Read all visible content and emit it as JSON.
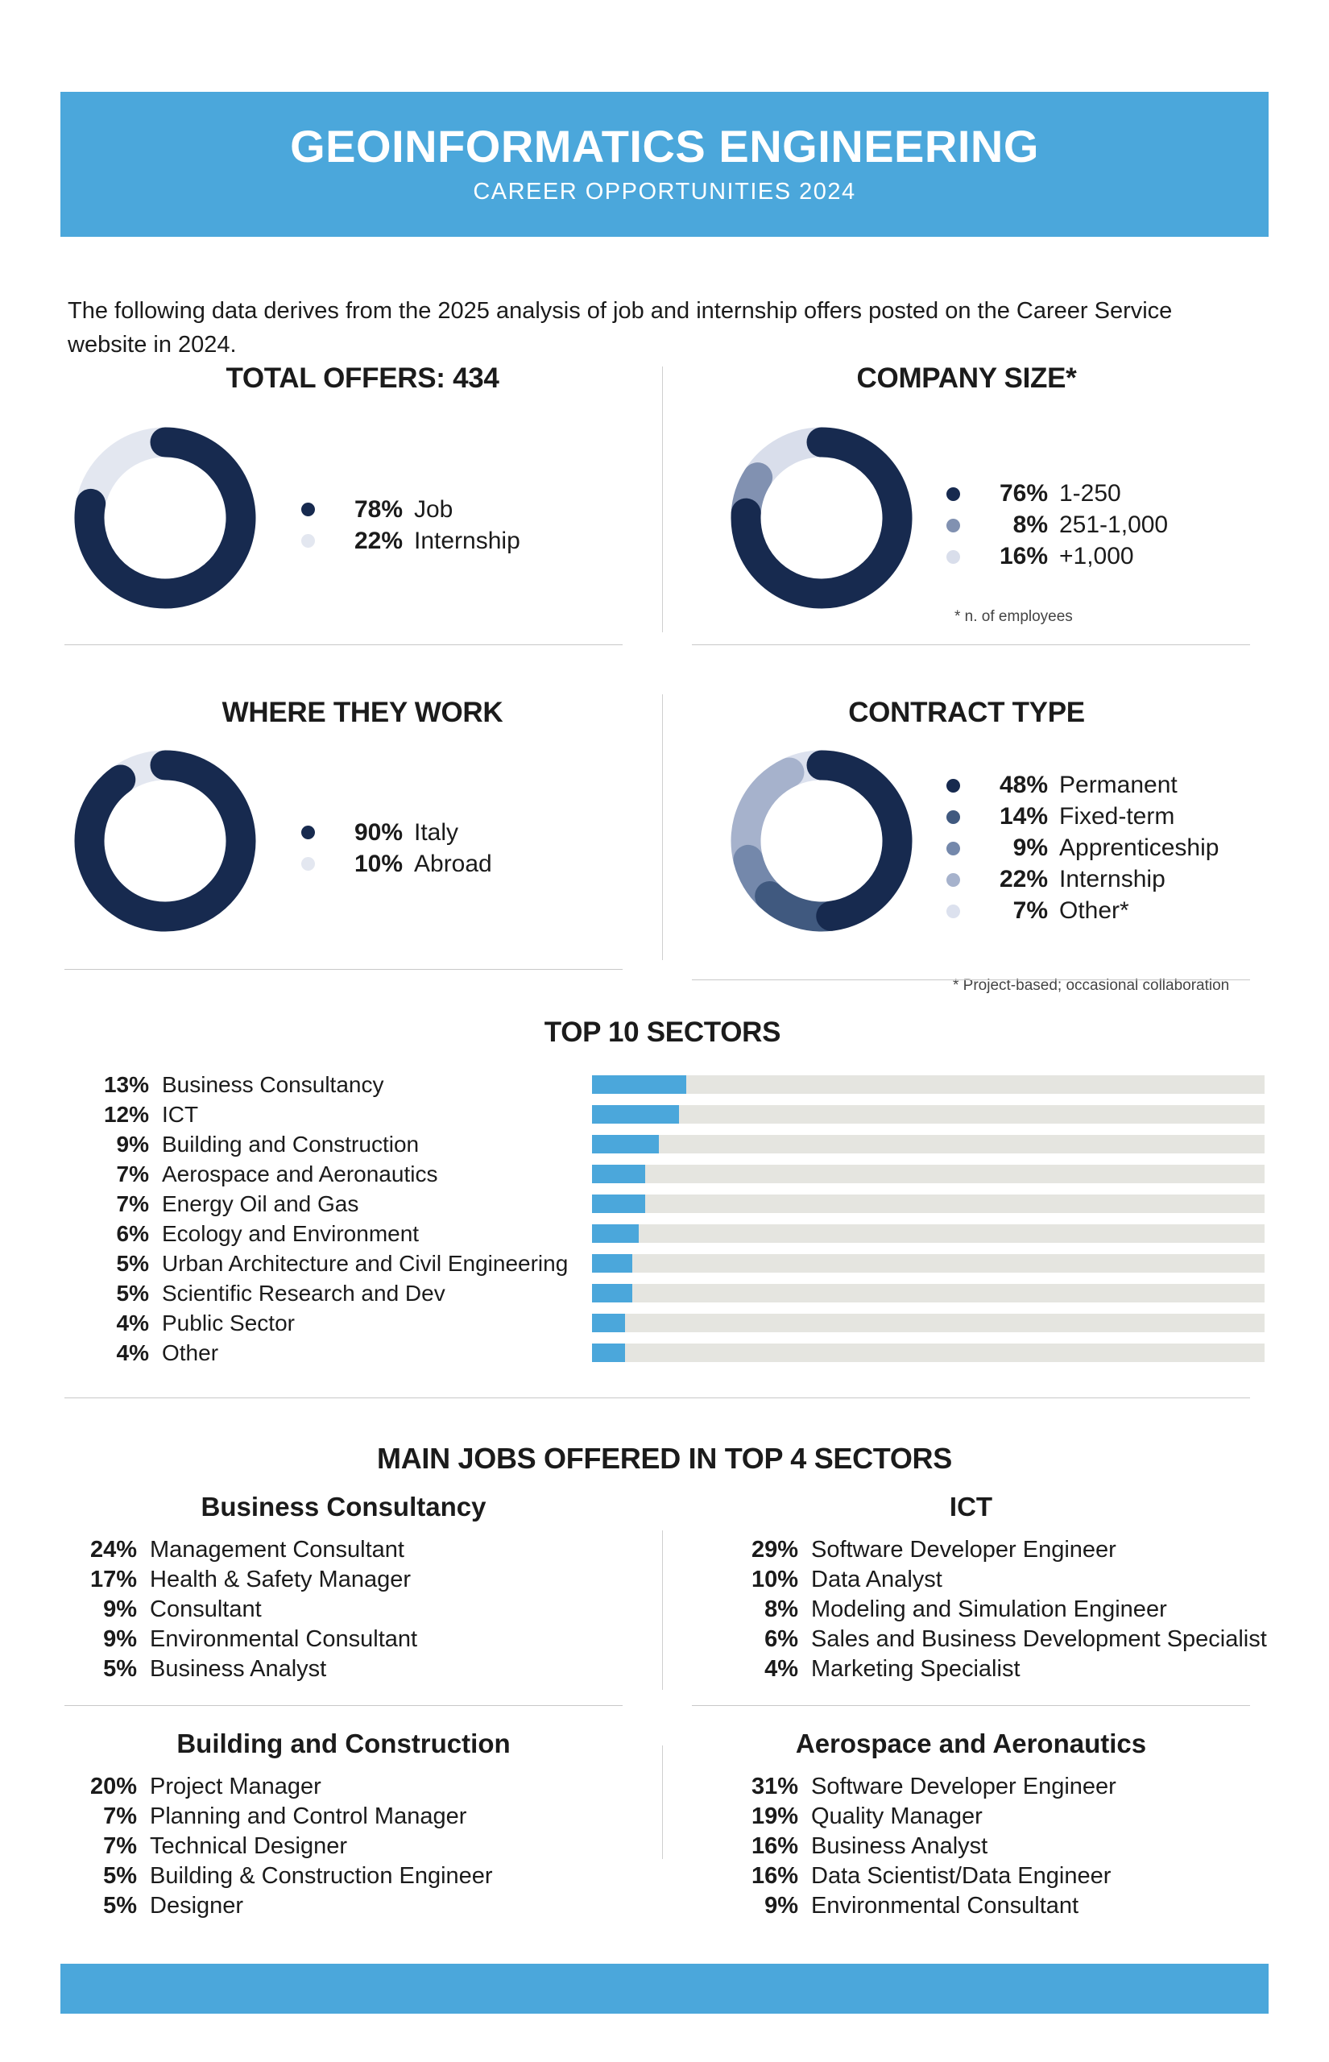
{
  "page": {
    "header": {
      "title": "GEOINFORMATICS ENGINEERING",
      "subtitle": "CAREER OPPORTUNITIES 2024"
    },
    "intro": "The following data derives from the 2025 analysis of job and internship offers posted on the Career Service website in 2024.",
    "colors": {
      "accent_blue": "#4BA7DB",
      "navy": "#172A4F",
      "bar_track": "#E5E5E0",
      "divider": "#C8C8C8"
    }
  },
  "chart_data": [
    {
      "type": "pie",
      "title": "TOTAL OFFERS: 434",
      "labels": [
        "Job",
        "Internship"
      ],
      "values": [
        78,
        22
      ],
      "colors": [
        "#172A4F",
        "#E3E7F0"
      ],
      "legend_position": "right"
    },
    {
      "type": "pie",
      "title": "COMPANY SIZE*",
      "footnote": "* n. of employees",
      "labels": [
        "1-250",
        "251-1,000",
        "+1,000"
      ],
      "values": [
        76,
        8,
        16
      ],
      "colors": [
        "#172A4F",
        "#8191B1",
        "#D9DEEB"
      ],
      "legend_position": "right"
    },
    {
      "type": "pie",
      "title": "WHERE THEY WORK",
      "labels": [
        "Italy",
        "Abroad"
      ],
      "values": [
        90,
        10
      ],
      "colors": [
        "#172A4F",
        "#E3E7F0"
      ],
      "legend_position": "right"
    },
    {
      "type": "pie",
      "title": "CONTRACT TYPE",
      "footnote": "* Project-based; occasional collaboration",
      "labels": [
        "Permanent",
        "Fixed-term",
        "Apprenticeship",
        "Internship",
        "Other*"
      ],
      "values": [
        48,
        14,
        9,
        22,
        7
      ],
      "colors": [
        "#172A4F",
        "#40597F",
        "#7488AB",
        "#A6B2CC",
        "#DCE1EE"
      ],
      "legend_position": "right"
    },
    {
      "type": "bar",
      "title": "TOP 10 SECTORS",
      "categories": [
        "Business Consultancy",
        "ICT",
        "Building and Construction",
        "Aerospace and Aeronautics",
        "Energy Oil and Gas",
        "Ecology and Environment",
        "Urban Architecture and Civil Engineering",
        "Scientific Research and Dev",
        "Public Sector",
        "Other"
      ],
      "values": [
        13,
        12,
        9,
        7,
        7,
        6,
        5,
        5,
        4,
        4
      ],
      "bar_color": "#4BA7DB",
      "track_color": "#E5E5E0",
      "xlim": [
        0,
        100
      ],
      "orientation": "horizontal",
      "grid": false,
      "legend": false
    }
  ],
  "main_jobs": {
    "title": "MAIN JOBS OFFERED IN TOP 4 SECTORS",
    "sectors": [
      {
        "name": "Business Consultancy",
        "jobs": [
          {
            "pct": 24,
            "label": "Management Consultant"
          },
          {
            "pct": 17,
            "label": "Health & Safety Manager"
          },
          {
            "pct": 9,
            "label": "Consultant"
          },
          {
            "pct": 9,
            "label": "Environmental Consultant"
          },
          {
            "pct": 5,
            "label": "Business Analyst"
          }
        ]
      },
      {
        "name": "ICT",
        "jobs": [
          {
            "pct": 29,
            "label": "Software Developer Engineer"
          },
          {
            "pct": 10,
            "label": "Data Analyst"
          },
          {
            "pct": 8,
            "label": "Modeling and Simulation Engineer"
          },
          {
            "pct": 6,
            "label": "Sales and Business Development Specialist"
          },
          {
            "pct": 4,
            "label": "Marketing Specialist"
          }
        ]
      },
      {
        "name": "Building and Construction",
        "jobs": [
          {
            "pct": 20,
            "label": "Project Manager"
          },
          {
            "pct": 7,
            "label": "Planning and Control Manager"
          },
          {
            "pct": 7,
            "label": "Technical Designer"
          },
          {
            "pct": 5,
            "label": "Building & Construction Engineer"
          },
          {
            "pct": 5,
            "label": "Designer"
          }
        ]
      },
      {
        "name": "Aerospace and Aeronautics",
        "jobs": [
          {
            "pct": 31,
            "label": "Software Developer Engineer"
          },
          {
            "pct": 19,
            "label": "Quality Manager"
          },
          {
            "pct": 16,
            "label": "Business Analyst"
          },
          {
            "pct": 16,
            "label": "Data Scientist/Data Engineer"
          },
          {
            "pct": 9,
            "label": "Environmental Consultant"
          }
        ]
      }
    ]
  }
}
